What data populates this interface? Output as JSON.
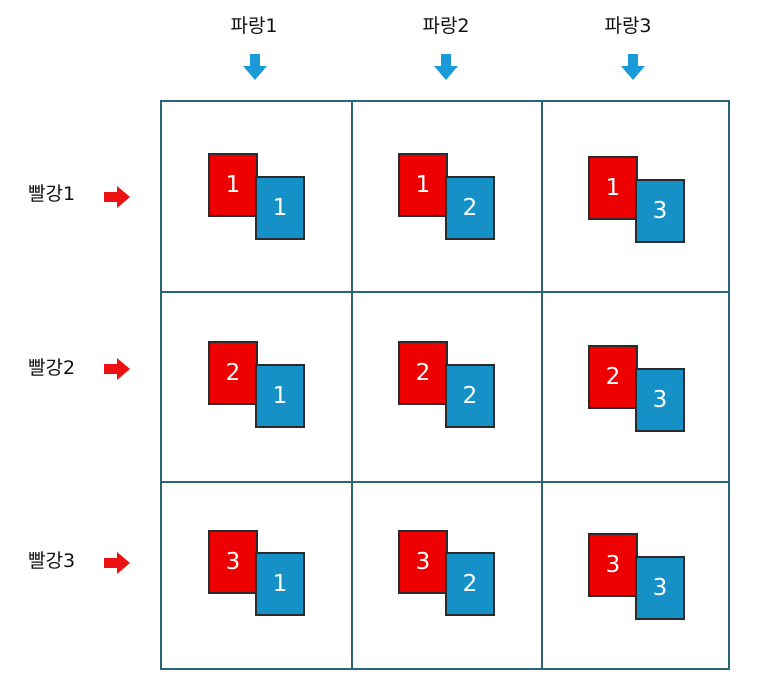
{
  "columns": [
    {
      "label": "파랑1"
    },
    {
      "label": "파랑2"
    },
    {
      "label": "파랑3"
    }
  ],
  "rows": [
    {
      "label": "빨강1"
    },
    {
      "label": "빨강2"
    },
    {
      "label": "빨강3"
    }
  ],
  "cells": [
    {
      "red": "1",
      "blue": "1"
    },
    {
      "red": "1",
      "blue": "2"
    },
    {
      "red": "1",
      "blue": "3"
    },
    {
      "red": "2",
      "blue": "1"
    },
    {
      "red": "2",
      "blue": "2"
    },
    {
      "red": "2",
      "blue": "3"
    },
    {
      "red": "3",
      "blue": "1"
    },
    {
      "red": "3",
      "blue": "2"
    },
    {
      "red": "3",
      "blue": "3"
    }
  ],
  "colors": {
    "red": "#ee0000",
    "blue": "#1591c8",
    "grid": "#2a6478",
    "row_arrow": "#ee1111",
    "column_arrow": "#1a9ad6"
  }
}
